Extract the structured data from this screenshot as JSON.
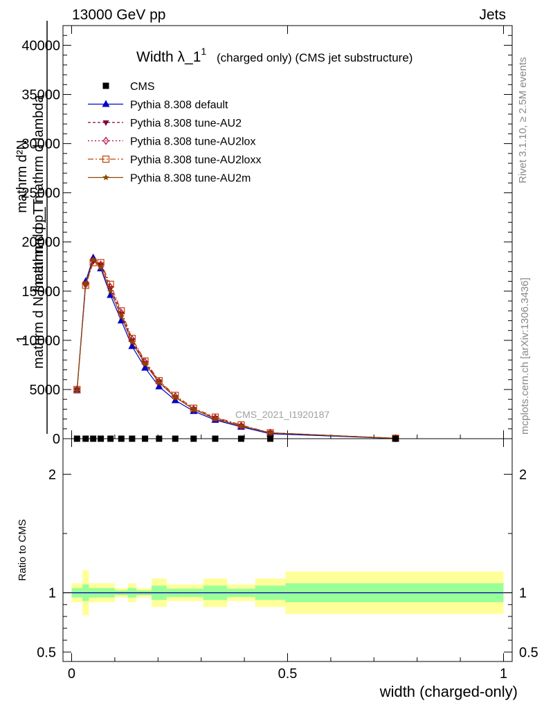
{
  "header": {
    "left": "13000 GeV pp",
    "right": "Jets"
  },
  "side_labels": {
    "rivet": "Rivet 3.1.10, ≥ 2.5M events",
    "mcplots": "mcplots.cern.ch [arXiv:1306.3436]"
  },
  "chart_data": [
    {
      "type": "line",
      "title": "Width λ_1",
      "title_sup": "1",
      "subtitle": "(charged only) (CMS jet substructure)",
      "watermark": "CMS_2021_I1920187",
      "ylabel_top": "mathrm d²N",
      "ylabel_frac_num": "mathrm d p_T mathrm d lambda",
      "ylabel_one": "1",
      "ylabel_frac_den": "mathrm d N / mathrm d p_T",
      "xlim": [
        -0.02,
        1.02
      ],
      "ylim": [
        0,
        42000
      ],
      "yticks": [
        0,
        5000,
        10000,
        15000,
        20000,
        25000,
        30000,
        35000,
        40000
      ],
      "ytick_labels": [
        "0",
        "5000",
        "10000",
        "15000",
        "20000",
        "25000",
        "30000",
        "35000",
        "40000"
      ],
      "legend_position": "top-left",
      "x": [
        0.0125,
        0.0325,
        0.05,
        0.0675,
        0.09,
        0.115,
        0.14,
        0.17,
        0.2025,
        0.24,
        0.2825,
        0.3325,
        0.3925,
        0.46,
        0.75
      ],
      "series": [
        {
          "name": "CMS",
          "color": "#000000",
          "marker": "square",
          "dash": "none",
          "values": [
            0,
            0,
            0,
            0,
            0,
            0,
            0,
            0,
            0,
            0,
            0,
            0,
            0,
            0,
            0
          ]
        },
        {
          "name": "Pythia 8.308 default",
          "color": "#0000cc",
          "marker": "triangle-up",
          "dash": "solid",
          "values": [
            4900,
            16000,
            18400,
            17300,
            14600,
            12000,
            9400,
            7200,
            5300,
            3900,
            2800,
            1900,
            1200,
            500,
            30
          ]
        },
        {
          "name": "Pythia 8.308 tune-AU2",
          "color": "#800040",
          "marker": "triangle-down",
          "dash": "4,3",
          "values": [
            5000,
            15700,
            18100,
            17700,
            15300,
            12700,
            10000,
            7700,
            5800,
            4200,
            3000,
            2100,
            1300,
            600,
            40
          ]
        },
        {
          "name": "Pythia 8.308 tune-AU2lox",
          "color": "#b0003a",
          "marker": "diamond",
          "dash": "2,3",
          "values": [
            5000,
            15700,
            18100,
            17700,
            15400,
            12800,
            10100,
            7800,
            5800,
            4300,
            3000,
            2100,
            1300,
            600,
            40
          ]
        },
        {
          "name": "Pythia 8.308 tune-AU2loxx",
          "color": "#c04000",
          "marker": "square-open",
          "dash": "8,3,2,3",
          "values": [
            5000,
            15600,
            17900,
            17900,
            15700,
            13000,
            10200,
            7900,
            5900,
            4400,
            3100,
            2200,
            1400,
            600,
            40
          ]
        },
        {
          "name": "Pythia 8.308 tune-AU2m",
          "color": "#8b4500",
          "marker": "star",
          "dash": "solid",
          "values": [
            4900,
            15700,
            18200,
            17400,
            15000,
            12400,
            9800,
            7600,
            5700,
            4200,
            3000,
            2000,
            1300,
            600,
            35
          ]
        }
      ]
    },
    {
      "type": "area",
      "ylabel": "Ratio to CMS",
      "xlabel": "width (charged-only)",
      "xlim": [
        -0.02,
        1.02
      ],
      "ylim": [
        0.42,
        2.3
      ],
      "yticks": [
        0.5,
        1,
        2
      ],
      "ytick_labels": [
        "0.5",
        "1",
        "2"
      ],
      "xticks": [
        0,
        0.5,
        1
      ],
      "xtick_labels": [
        "0",
        "0.5",
        "1"
      ],
      "reference": 1,
      "bins": [
        {
          "x0": 0.0,
          "x1": 0.025,
          "yellow": 0.08,
          "green": 0.04
        },
        {
          "x0": 0.025,
          "x1": 0.04,
          "yellow": 0.19,
          "green": 0.07
        },
        {
          "x0": 0.04,
          "x1": 0.06,
          "yellow": 0.08,
          "green": 0.04
        },
        {
          "x0": 0.06,
          "x1": 0.075,
          "yellow": 0.08,
          "green": 0.04
        },
        {
          "x0": 0.075,
          "x1": 0.1,
          "yellow": 0.08,
          "green": 0.04
        },
        {
          "x0": 0.1,
          "x1": 0.13,
          "yellow": 0.04,
          "green": 0.02
        },
        {
          "x0": 0.13,
          "x1": 0.15,
          "yellow": 0.08,
          "green": 0.04
        },
        {
          "x0": 0.15,
          "x1": 0.185,
          "yellow": 0.04,
          "green": 0.02
        },
        {
          "x0": 0.185,
          "x1": 0.22,
          "yellow": 0.12,
          "green": 0.06
        },
        {
          "x0": 0.22,
          "x1": 0.26,
          "yellow": 0.07,
          "green": 0.035
        },
        {
          "x0": 0.26,
          "x1": 0.305,
          "yellow": 0.07,
          "green": 0.035
        },
        {
          "x0": 0.305,
          "x1": 0.36,
          "yellow": 0.12,
          "green": 0.06
        },
        {
          "x0": 0.36,
          "x1": 0.425,
          "yellow": 0.07,
          "green": 0.035
        },
        {
          "x0": 0.425,
          "x1": 0.495,
          "yellow": 0.12,
          "green": 0.06
        },
        {
          "x0": 0.495,
          "x1": 1.0,
          "yellow": 0.18,
          "green": 0.08
        }
      ],
      "band_colors": {
        "yellow": "#ffff99",
        "green": "#99ff99"
      },
      "series": [
        {
          "name": "Pythia 8.308 default",
          "color": "#0000cc",
          "x": [
            0.0,
            1.0
          ],
          "values": [
            1.0,
            1.0
          ]
        }
      ]
    }
  ]
}
